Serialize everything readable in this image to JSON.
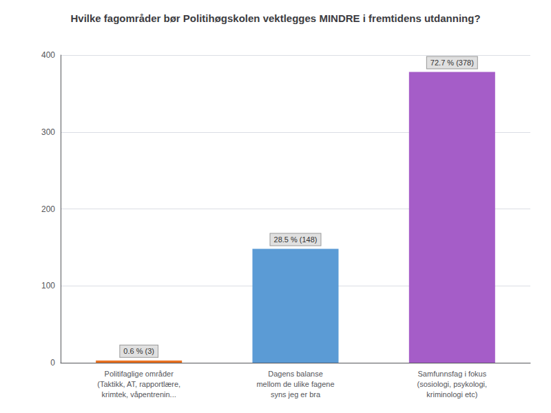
{
  "chart_data": {
    "type": "bar",
    "title": "Hvilke fagområder bør Politihøgskolen vektlegges MINDRE i fremtidens utdanning?",
    "categories": [
      "Politifaglige områder\n(Taktikk, AT, rapportlære,\nkrimtek, våpentrenin...",
      "Dagens balanse\nmellom de ulike fagene\nsyns jeg er bra",
      "Samfunnsfag i fokus\n(sosiologi, psykologi,\nkriminologi etc)"
    ],
    "values": [
      3,
      148,
      378
    ],
    "value_labels": [
      "0.6 % (3)",
      "28.5 % (148)",
      "72.7 % (378)"
    ],
    "data_labels": true,
    "colors": [
      "#e87020",
      "#5b9bd5",
      "#a55dc8"
    ],
    "ylim": [
      0,
      400
    ],
    "yticks": [
      0,
      100,
      200,
      300,
      400
    ],
    "grid": true
  }
}
